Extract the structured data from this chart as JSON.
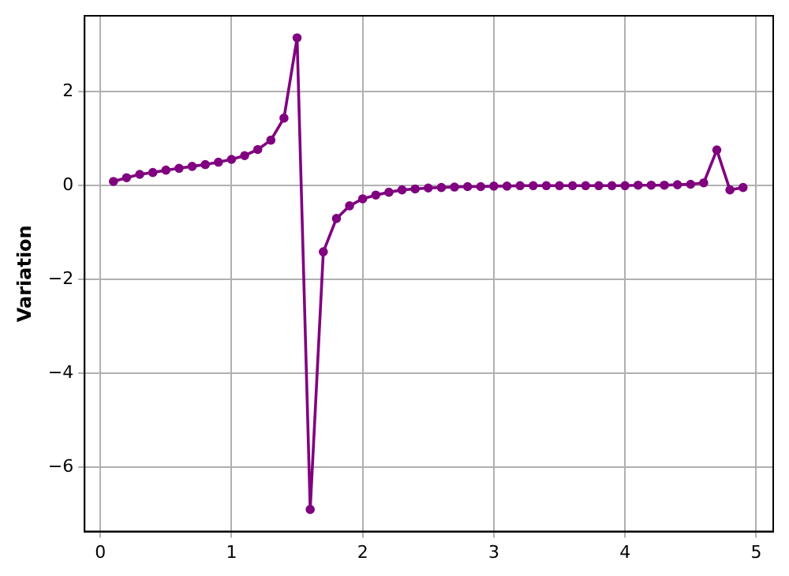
{
  "chart_data": {
    "type": "line",
    "ylabel": "Variation",
    "x": [
      0.1,
      0.2,
      0.3,
      0.4,
      0.5,
      0.6,
      0.7,
      0.8,
      0.9,
      1.0,
      1.1,
      1.2,
      1.3,
      1.4,
      1.5,
      1.6,
      1.7,
      1.8,
      1.9,
      2.0,
      2.1,
      2.2,
      2.3,
      2.4,
      2.5,
      2.6,
      2.7,
      2.8,
      2.9,
      3.0,
      3.1,
      3.2,
      3.3,
      3.4,
      3.5,
      3.6,
      3.7,
      3.8,
      3.9,
      4.0,
      4.1,
      4.2,
      4.3,
      4.4,
      4.5,
      4.6,
      4.7,
      4.8,
      4.9
    ],
    "series": [
      {
        "color": "#800080",
        "values": [
          0.09,
          0.17,
          0.24,
          0.28,
          0.33,
          0.37,
          0.41,
          0.45,
          0.5,
          0.56,
          0.64,
          0.77,
          0.97,
          1.44,
          3.15,
          -6.9,
          -1.41,
          -0.7,
          -0.43,
          -0.28,
          -0.2,
          -0.14,
          -0.09,
          -0.07,
          -0.05,
          -0.04,
          -0.03,
          -0.02,
          -0.02,
          -0.01,
          -0.01,
          0,
          0,
          0,
          0,
          0,
          0,
          0,
          0,
          0,
          0.01,
          0.01,
          0.01,
          0.02,
          0.03,
          0.06,
          0.76,
          -0.09,
          -0.04
        ]
      }
    ],
    "xlim": [
      -0.12,
      5.13
    ],
    "ylim": [
      -7.37,
      3.62
    ],
    "xticks": [
      0,
      1,
      2,
      3,
      4,
      5
    ],
    "yticks": [
      -6,
      -4,
      -2,
      0,
      2
    ],
    "grid": true,
    "marker": "circle",
    "line_style": "solid"
  }
}
